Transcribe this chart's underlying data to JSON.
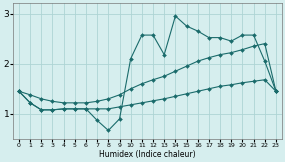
{
  "xlabel": "Humidex (Indice chaleur)",
  "bg_color": "#d6eeee",
  "grid_color": "#aed4d4",
  "line_color": "#1a6b6b",
  "xlim": [
    -0.5,
    23.5
  ],
  "ylim": [
    0.5,
    3.2
  ],
  "yticks": [
    1,
    2,
    3
  ],
  "xticks": [
    0,
    1,
    2,
    3,
    4,
    5,
    6,
    7,
    8,
    9,
    10,
    11,
    12,
    13,
    14,
    15,
    16,
    17,
    18,
    19,
    20,
    21,
    22,
    23
  ],
  "curve_x": [
    0,
    1,
    2,
    3,
    4,
    5,
    6,
    7,
    8,
    9,
    10,
    11,
    12,
    13,
    14,
    15,
    16,
    17,
    18,
    19,
    20,
    21,
    22,
    23
  ],
  "curve_y": [
    1.45,
    1.22,
    1.08,
    1.08,
    1.1,
    1.1,
    1.1,
    0.87,
    0.67,
    0.9,
    2.1,
    2.57,
    2.57,
    2.18,
    2.95,
    2.75,
    2.65,
    2.52,
    2.52,
    2.45,
    2.57,
    2.57,
    2.05,
    1.45
  ],
  "diag_x": [
    0,
    1,
    2,
    3,
    4,
    5,
    6,
    7,
    8,
    9,
    10,
    11,
    12,
    13,
    14,
    15,
    16,
    17,
    18,
    19,
    20,
    21,
    22,
    23
  ],
  "diag_y": [
    1.45,
    1.38,
    1.3,
    1.25,
    1.22,
    1.22,
    1.22,
    1.25,
    1.3,
    1.38,
    1.5,
    1.6,
    1.68,
    1.75,
    1.85,
    1.95,
    2.05,
    2.12,
    2.18,
    2.22,
    2.28,
    2.35,
    2.4,
    1.45
  ],
  "flat_x": [
    0,
    1,
    2,
    3,
    4,
    5,
    6,
    7,
    8,
    9,
    10,
    11,
    12,
    13,
    14,
    15,
    16,
    17,
    18,
    19,
    20,
    21,
    22,
    23
  ],
  "flat_y": [
    1.45,
    1.22,
    1.08,
    1.08,
    1.1,
    1.1,
    1.1,
    1.1,
    1.1,
    1.14,
    1.18,
    1.22,
    1.26,
    1.3,
    1.35,
    1.4,
    1.45,
    1.5,
    1.55,
    1.58,
    1.62,
    1.65,
    1.68,
    1.45
  ],
  "marker": "D",
  "markersize": 2.0,
  "linewidth": 0.8
}
